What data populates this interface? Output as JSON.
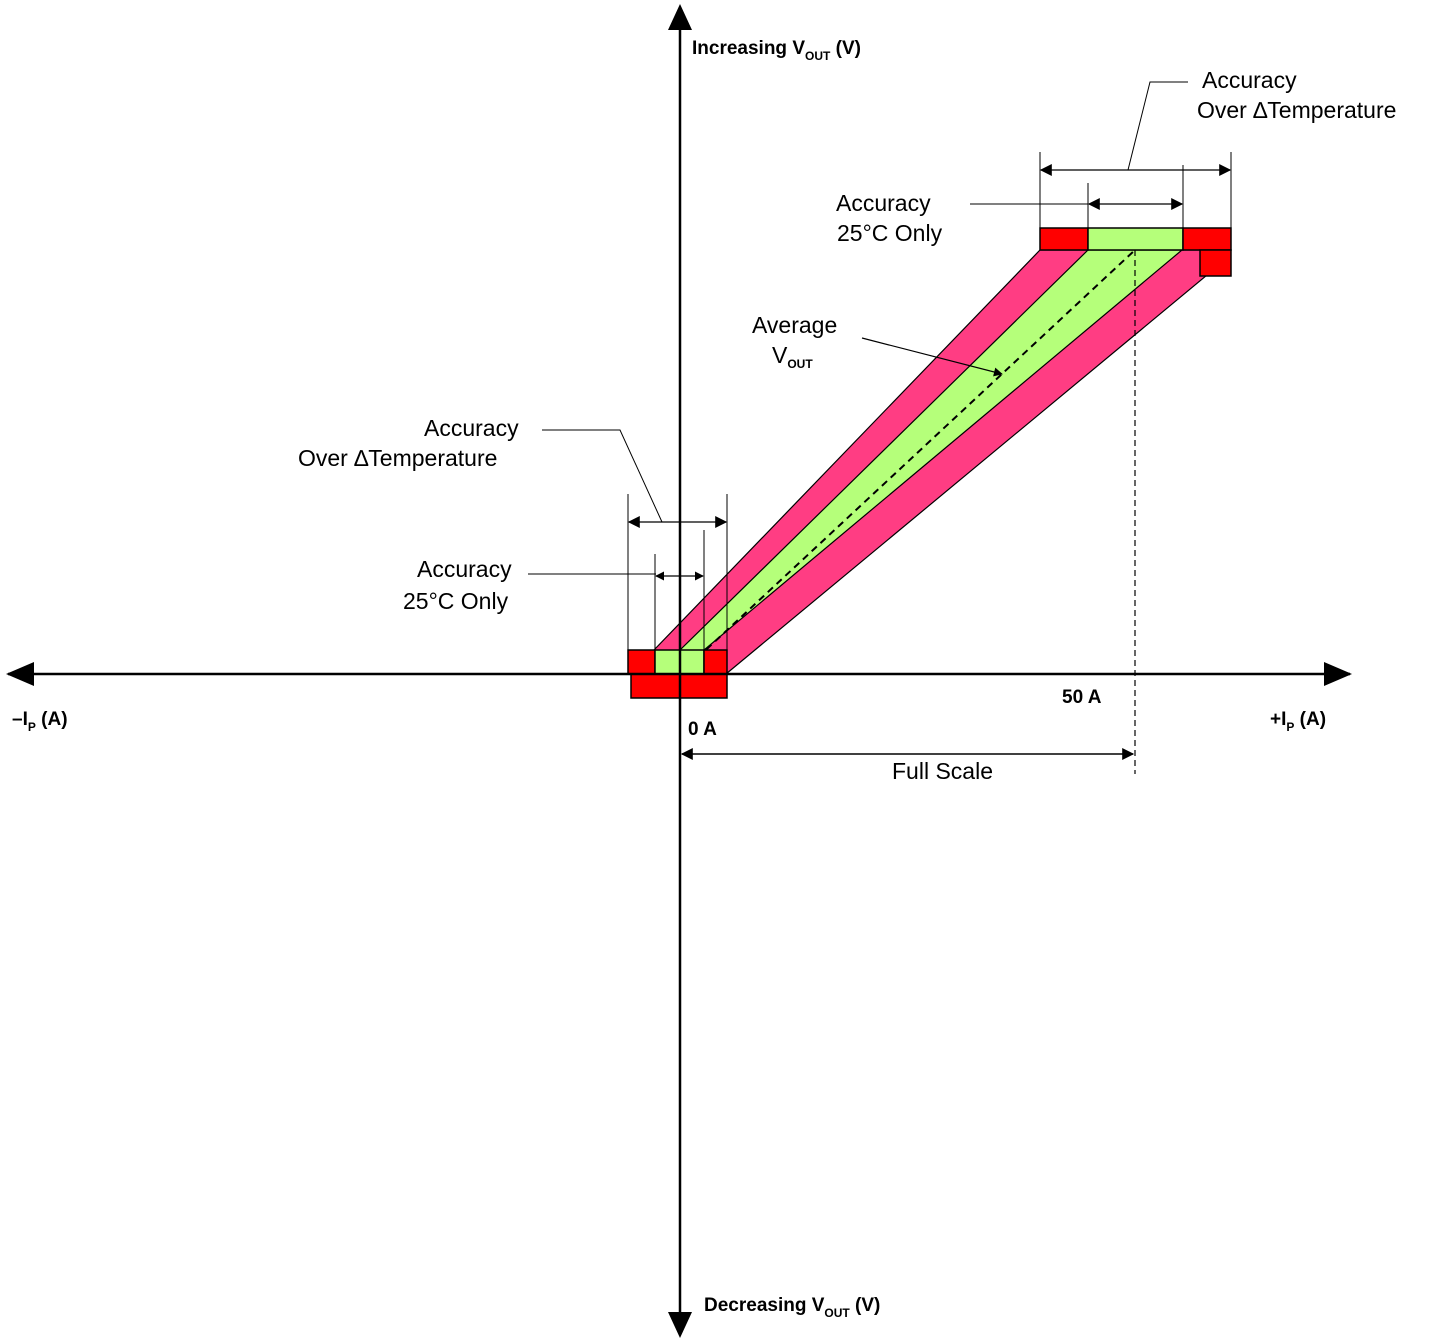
{
  "axes": {
    "y_top_label": {
      "main": "Increasing V",
      "sub": "OUT",
      "unit": " (V)"
    },
    "y_bottom_label": {
      "main": "Decreasing V",
      "sub": "OUT",
      "unit": " (V)"
    },
    "x_left_label": {
      "main": "–I",
      "sub": "P",
      "unit": " (A)"
    },
    "x_right_label": {
      "main": "+I",
      "sub": "P",
      "unit": " (A)"
    },
    "origin_label": "0 A",
    "fullscale_point_label": "50 A"
  },
  "annotations": {
    "full_scale": "Full Scale",
    "average_vout": {
      "line1": "Average",
      "main": "V",
      "sub": "OUT"
    },
    "top_accuracy_temp": {
      "line1": "Accuracy",
      "line2": "Over ∆Temperature"
    },
    "top_accuracy_25c": {
      "line1": "Accuracy",
      "line2": "25°C Only"
    },
    "bottom_accuracy_temp": {
      "line1": "Accuracy",
      "line2": "Over ∆Temperature"
    },
    "bottom_accuracy_25c": {
      "line1": "Accuracy",
      "line2": "25°C Only"
    }
  },
  "colors": {
    "temperature_band": "#ff3d83",
    "room_temp_band": "#b5ff7a",
    "error_box": "#ff0000",
    "axis": "#000000"
  }
}
